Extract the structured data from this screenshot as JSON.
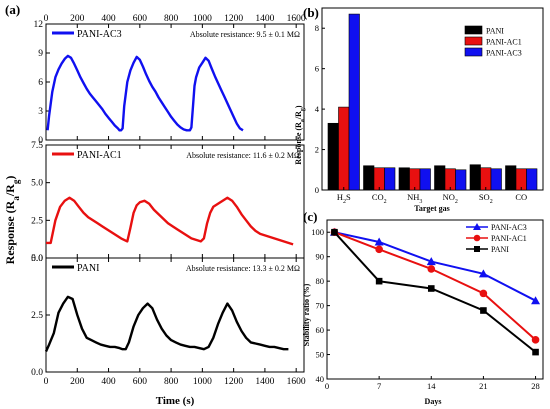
{
  "chart_data": [
    {
      "type": "line",
      "panel_label": "(a)",
      "xlabel": "Time (s)",
      "ylabel": "Response (R_a/R_g)",
      "ylabel_main": "Response (R",
      "ylabel_sub_a": "a",
      "ylabel_sep": "/R",
      "ylabel_sub_g": "g",
      "ylabel_end": ")",
      "xlim": [
        0,
        1650
      ],
      "xticks": [
        "0",
        "200",
        "400",
        "600",
        "800",
        "1000",
        "1200",
        "1400",
        "1600"
      ],
      "xtick_values": [
        0,
        200,
        400,
        600,
        800,
        1000,
        1200,
        1400,
        1600
      ],
      "subplots": [
        {
          "name": "PANI-AC3",
          "color": "#1010f0",
          "annotation": "Absolute resistance: 9.5 ± 0.1 MΩ",
          "ylim": [
            0,
            12
          ],
          "yticks": [
            "0",
            "3",
            "6",
            "9",
            "12"
          ],
          "ytick_values": [
            0,
            3,
            6,
            9,
            12
          ],
          "x": [
            10,
            20,
            40,
            60,
            80,
            100,
            120,
            140,
            160,
            180,
            200,
            220,
            240,
            260,
            280,
            300,
            320,
            340,
            360,
            380,
            400,
            420,
            440,
            460,
            470,
            480,
            490,
            500,
            520,
            540,
            560,
            580,
            600,
            620,
            640,
            660,
            680,
            700,
            720,
            740,
            760,
            780,
            800,
            820,
            840,
            860,
            880,
            900,
            920,
            930,
            940,
            950,
            960,
            980,
            1000,
            1020,
            1040,
            1060,
            1080,
            1100,
            1120,
            1140,
            1160,
            1180,
            1200,
            1220,
            1240,
            1260
          ],
          "y": [
            1.0,
            2.5,
            5.0,
            6.5,
            7.3,
            7.9,
            8.4,
            8.7,
            8.5,
            7.9,
            7.2,
            6.5,
            5.9,
            5.3,
            4.8,
            4.4,
            4.0,
            3.6,
            3.2,
            2.7,
            2.3,
            1.9,
            1.5,
            1.2,
            1.0,
            1.0,
            1.2,
            3.5,
            6.0,
            7.2,
            8.0,
            8.6,
            8.3,
            7.6,
            6.8,
            6.1,
            5.5,
            5.0,
            4.4,
            3.9,
            3.4,
            2.9,
            2.4,
            2.0,
            1.6,
            1.3,
            1.1,
            1.0,
            1.0,
            1.3,
            3.5,
            5.6,
            6.5,
            7.5,
            8.0,
            8.5,
            8.2,
            7.4,
            6.6,
            5.9,
            5.2,
            4.5,
            3.8,
            3.1,
            2.4,
            1.7,
            1.2,
            1.0
          ]
        },
        {
          "name": "PANI-AC1",
          "color": "#e81010",
          "annotation": "Absolute resistance: 11.6 ± 0.2 MΩ",
          "ylim": [
            0,
            7.5
          ],
          "yticks": [
            "0.0",
            "2.5",
            "5.0",
            "7.5"
          ],
          "ytick_values": [
            0,
            2.5,
            5.0,
            7.5
          ],
          "x": [
            0,
            30,
            60,
            90,
            120,
            150,
            180,
            210,
            240,
            270,
            300,
            330,
            360,
            390,
            420,
            450,
            480,
            500,
            520,
            540,
            560,
            580,
            600,
            630,
            660,
            690,
            720,
            750,
            780,
            810,
            840,
            870,
            900,
            930,
            960,
            990,
            1010,
            1030,
            1050,
            1070,
            1100,
            1130,
            1160,
            1190,
            1220,
            1250,
            1280,
            1310,
            1340,
            1370,
            1400,
            1430,
            1460,
            1490,
            1520,
            1550,
            1580
          ],
          "y": [
            1.0,
            1.0,
            2.5,
            3.4,
            3.8,
            4.0,
            3.8,
            3.4,
            3.0,
            2.7,
            2.5,
            2.3,
            2.1,
            1.9,
            1.7,
            1.5,
            1.3,
            1.2,
            1.1,
            2.0,
            3.0,
            3.5,
            3.7,
            3.8,
            3.6,
            3.2,
            2.9,
            2.6,
            2.3,
            2.1,
            1.9,
            1.7,
            1.5,
            1.3,
            1.2,
            1.1,
            1.3,
            2.3,
            3.0,
            3.4,
            3.6,
            3.8,
            4.0,
            3.8,
            3.4,
            2.9,
            2.5,
            2.1,
            1.8,
            1.6,
            1.5,
            1.4,
            1.3,
            1.2,
            1.1,
            1.0,
            0.9
          ]
        },
        {
          "name": "PANI",
          "color": "#000000",
          "annotation": "Absolute resistance: 13.3 ± 0.2 MΩ",
          "ylim": [
            0,
            5.0
          ],
          "yticks": [
            "0.0",
            "2.5",
            "5.0"
          ],
          "ytick_values": [
            0,
            2.5,
            5.0
          ],
          "x": [
            0,
            20,
            50,
            80,
            110,
            140,
            170,
            200,
            230,
            260,
            290,
            320,
            350,
            380,
            410,
            440,
            470,
            490,
            510,
            530,
            560,
            590,
            620,
            650,
            680,
            710,
            740,
            770,
            800,
            830,
            860,
            890,
            920,
            950,
            980,
            1010,
            1040,
            1070,
            1100,
            1130,
            1160,
            1190,
            1220,
            1250,
            1280,
            1310,
            1340,
            1370,
            1400,
            1430,
            1460,
            1490,
            1520,
            1550
          ],
          "y": [
            0.9,
            1.2,
            1.7,
            2.6,
            3.0,
            3.3,
            3.2,
            2.5,
            1.9,
            1.5,
            1.4,
            1.3,
            1.2,
            1.15,
            1.1,
            1.1,
            1.05,
            1.0,
            1.0,
            1.3,
            2.0,
            2.5,
            2.8,
            3.0,
            2.8,
            2.3,
            1.9,
            1.6,
            1.4,
            1.3,
            1.2,
            1.15,
            1.1,
            1.1,
            1.05,
            1.0,
            1.1,
            1.5,
            2.1,
            2.6,
            3.0,
            2.7,
            2.2,
            1.8,
            1.5,
            1.3,
            1.25,
            1.2,
            1.15,
            1.1,
            1.1,
            1.05,
            1.0,
            1.0
          ]
        }
      ]
    },
    {
      "type": "bar",
      "panel_label": "(b)",
      "xlabel": "Target gas",
      "ylabel": "Response (R_a/R_g)",
      "ylabel_main": "Response (R",
      "ylabel_sub_a": "a",
      "ylabel_sep": "/R",
      "ylabel_sub_g": "g",
      "ylabel_end": ")",
      "ylim": [
        0,
        9
      ],
      "yticks": [
        "0",
        "2",
        "4",
        "6",
        "8"
      ],
      "ytick_values": [
        0,
        2,
        4,
        6,
        8
      ],
      "categories": [
        {
          "main": "H",
          "sub": "2",
          "rest": "S"
        },
        {
          "main": "CO",
          "sub": "2",
          "rest": ""
        },
        {
          "main": "NH",
          "sub": "3",
          "rest": ""
        },
        {
          "main": "NO",
          "sub": "2",
          "rest": ""
        },
        {
          "main": "SO",
          "sub": "2",
          "rest": ""
        },
        {
          "main": "CO",
          "sub": "",
          "rest": ""
        }
      ],
      "legend_position": "top-right",
      "series": [
        {
          "name": "PANI",
          "color": "#000000",
          "values": [
            3.3,
            1.2,
            1.1,
            1.2,
            1.25,
            1.2
          ]
        },
        {
          "name": "PANI-AC1",
          "color": "#e81010",
          "values": [
            4.1,
            1.1,
            1.05,
            1.05,
            1.1,
            1.05
          ]
        },
        {
          "name": "PANI-AC3",
          "color": "#1010f0",
          "values": [
            8.7,
            1.1,
            1.05,
            1.0,
            1.05,
            1.05
          ]
        }
      ]
    },
    {
      "type": "line",
      "panel_label": "(c)",
      "xlabel": "Days",
      "ylabel": "Stability ratio (%)",
      "xlim": [
        0,
        29
      ],
      "ylim": [
        40,
        105
      ],
      "xticks": [
        "0",
        "7",
        "14",
        "21",
        "28"
      ],
      "xtick_values": [
        0,
        7,
        14,
        21,
        28
      ],
      "yticks": [
        "40",
        "50",
        "60",
        "70",
        "80",
        "90",
        "100"
      ],
      "ytick_values": [
        40,
        50,
        60,
        70,
        80,
        90,
        100
      ],
      "legend_position": "top-right",
      "series": [
        {
          "name": "PANI-AC3",
          "color": "#1010f0",
          "marker": "triangle",
          "x": [
            1,
            7,
            14,
            21,
            28
          ],
          "y": [
            100,
            96,
            88,
            83,
            72
          ]
        },
        {
          "name": "PANI-AC1",
          "color": "#e81010",
          "marker": "circle",
          "x": [
            1,
            7,
            14,
            21,
            28
          ],
          "y": [
            100,
            93,
            85,
            75,
            56
          ]
        },
        {
          "name": "PANI",
          "color": "#000000",
          "marker": "square",
          "x": [
            1,
            7,
            14,
            21,
            28
          ],
          "y": [
            100,
            80,
            77,
            68,
            51
          ]
        }
      ]
    }
  ]
}
